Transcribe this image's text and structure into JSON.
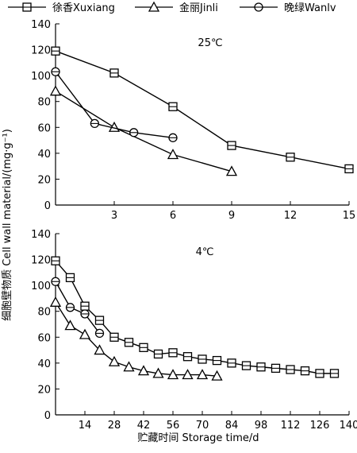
{
  "figure": {
    "ylabel": "细胞壁物质 Cell wall material/(mg·g⁻¹)",
    "xlabel": "贮藏时间 Storage time/d",
    "legend": [
      {
        "label": "徐香Xuxiang",
        "marker": "square"
      },
      {
        "label": "金丽Jinli",
        "marker": "triangle"
      },
      {
        "label": "晚绿Wanlv",
        "marker": "circle"
      }
    ]
  },
  "chart_data": [
    {
      "type": "line",
      "annotation": "25℃",
      "xlim": [
        0,
        15
      ],
      "ylim": [
        0,
        140
      ],
      "xticks": [
        3,
        6,
        9,
        12,
        15
      ],
      "yticks": [
        0,
        20,
        40,
        60,
        80,
        100,
        120,
        140
      ],
      "series": [
        {
          "name": "徐香Xuxiang",
          "marker": "square",
          "x": [
            0,
            3,
            6,
            9,
            12,
            15
          ],
          "y": [
            119,
            102,
            76,
            46,
            37,
            28
          ]
        },
        {
          "name": "金丽Jinli",
          "marker": "triangle",
          "x": [
            0,
            3,
            6,
            9
          ],
          "y": [
            88,
            60,
            39,
            26
          ]
        },
        {
          "name": "晚绿Wanlv",
          "marker": "circle",
          "x": [
            0,
            2,
            4,
            6
          ],
          "y": [
            103,
            63,
            56,
            52
          ]
        }
      ]
    },
    {
      "type": "line",
      "annotation": "4℃",
      "xlim": [
        0,
        140
      ],
      "ylim": [
        0,
        140
      ],
      "xticks": [
        14,
        28,
        42,
        56,
        70,
        84,
        98,
        112,
        126,
        140
      ],
      "yticks": [
        0,
        20,
        40,
        60,
        80,
        100,
        120,
        140
      ],
      "series": [
        {
          "name": "徐香Xuxiang",
          "marker": "square",
          "x": [
            0,
            7,
            14,
            21,
            28,
            35,
            42,
            49,
            56,
            63,
            70,
            77,
            84,
            91,
            98,
            105,
            112,
            119,
            126,
            133
          ],
          "y": [
            119,
            106,
            84,
            73,
            60,
            56,
            52,
            47,
            48,
            45,
            43,
            42,
            40,
            38,
            37,
            36,
            35,
            34,
            32,
            32
          ]
        },
        {
          "name": "金丽Jinli",
          "marker": "triangle",
          "x": [
            0,
            7,
            14,
            21,
            28,
            35,
            42,
            49,
            56,
            63,
            70,
            77
          ],
          "y": [
            87,
            69,
            62,
            50,
            41,
            37,
            34,
            32,
            31,
            31,
            31,
            30
          ]
        },
        {
          "name": "晚绿Wanlv",
          "marker": "circle",
          "x": [
            0,
            7,
            14,
            21
          ],
          "y": [
            103,
            83,
            78,
            63
          ]
        }
      ]
    }
  ]
}
